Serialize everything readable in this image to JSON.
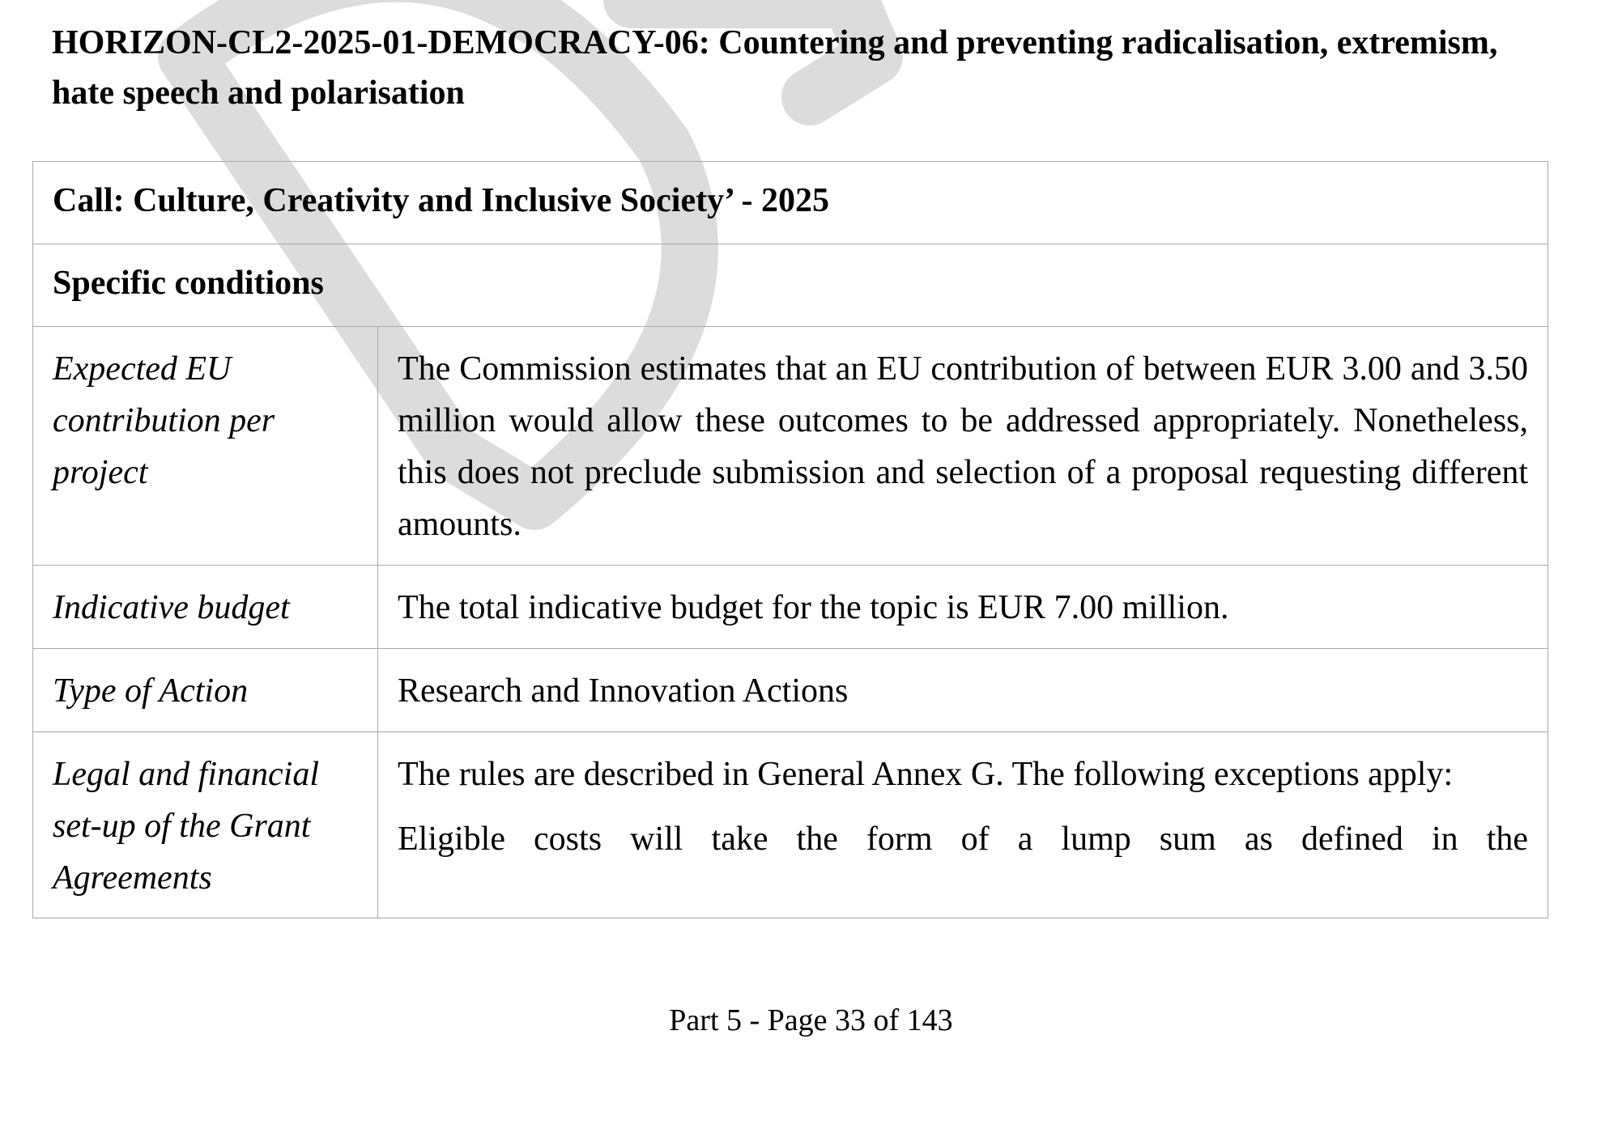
{
  "document": {
    "heading": "HORIZON-CL2-2025-01-DEMOCRACY-06: Countering and preventing radicalisation, extremism, hate speech and polarisation",
    "watermark": "Draft",
    "call_label": "Call: Culture, Creativity and Inclusive Society’ - 2025",
    "section_label": "Specific conditions",
    "rows": [
      {
        "label": "Expected EU contribution per project",
        "value": "The Commission estimates that an EU contribution of between EUR 3.00 and 3.50 million would allow these outcomes to be addressed appropriately. Nonetheless, this does not preclude submission and selection of a proposal requesting different amounts."
      },
      {
        "label": "Indicative budget",
        "value": "The total indicative budget for the topic is EUR 7.00 million."
      },
      {
        "label": "Type of Action",
        "value": "Research and Innovation Actions"
      },
      {
        "label": "Legal and financial set-up of the Grant Agreements",
        "value": "The rules are described in General Annex G. The following exceptions apply:",
        "value_continued": "Eligible costs will take the form of a lump sum as defined in the"
      }
    ],
    "footer": "Part 5 - Page 33 of 143"
  }
}
